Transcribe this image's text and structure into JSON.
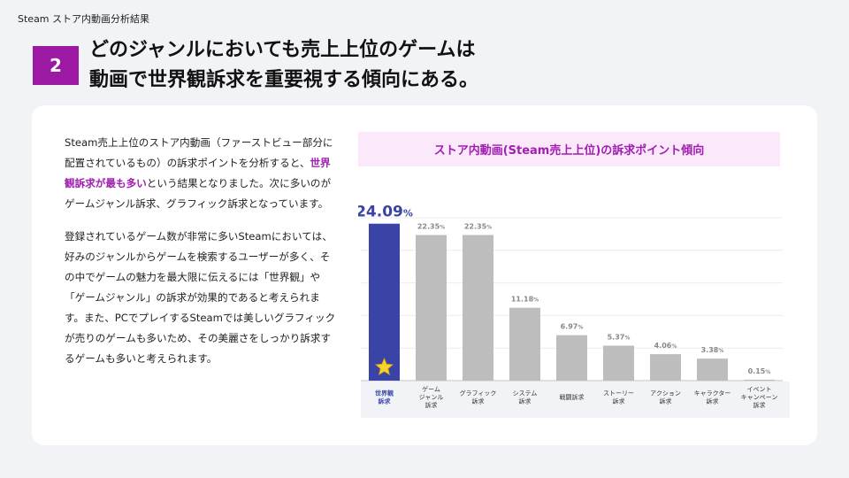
{
  "header": {
    "section_label": "Steam ストア内動画分析結果"
  },
  "badge": {
    "number": "2"
  },
  "headline": {
    "line1": "どのジャンルにおいても売上上位のゲームは",
    "line2": "動画で世界観訴求を重要視する傾向にある。"
  },
  "body": {
    "p1_a": "Steam売上上位のストア内動画（ファーストビュー部分に配置されているもの）の訴求ポイントを分析すると、",
    "p1_highlight": "世界観訴求が最も多い",
    "p1_b": "という結果となりました。次に多いのがゲームジャンル訴求、グラフィック訴求となっています。",
    "p2": "登録されているゲーム数が非常に多いSteamにおいては、好みのジャンルからゲームを検索するユーザーが多く、その中でゲームの魅力を最大限に伝えるには「世界観」や「ゲームジャンル」の訴求が効果的であると考えられます。また、PCでプレイするSteamでは美しいグラフィックが売りのゲームも多いため、その美麗さをしっかり訴求するゲームも多いと考えられます。"
  },
  "colors": {
    "accent": "#9c19a3",
    "highlight_bar": "#3a44a6",
    "bar": "#bdbdbd",
    "star": "#f5d22e"
  },
  "chart_data": {
    "type": "bar",
    "title": "ストア内動画(Steam売上上位)の訴求ポイント傾向",
    "categories": [
      [
        "世界観",
        "訴求"
      ],
      [
        "ゲーム",
        "ジャンル",
        "訴求"
      ],
      [
        "グラフィック",
        "訴求"
      ],
      [
        "システム",
        "訴求"
      ],
      [
        "戦闘訴求"
      ],
      [
        "ストーリー",
        "訴求"
      ],
      [
        "アクション",
        "訴求"
      ],
      [
        "キャラクター",
        "訴求"
      ],
      [
        "イベント",
        "キャンペーン",
        "訴求"
      ]
    ],
    "values": [
      24.09,
      22.35,
      22.35,
      11.18,
      6.97,
      5.37,
      4.06,
      3.38,
      0.15
    ],
    "value_labels": [
      "24.09",
      "22.35",
      "22.35",
      "11.18",
      "6.97",
      "5.37",
      "4.06",
      "3.38",
      "0.15"
    ],
    "unit": "%",
    "ylim": [
      0,
      25
    ],
    "grid": true,
    "highlight_index": 0,
    "highlight_icon": "star-icon"
  }
}
